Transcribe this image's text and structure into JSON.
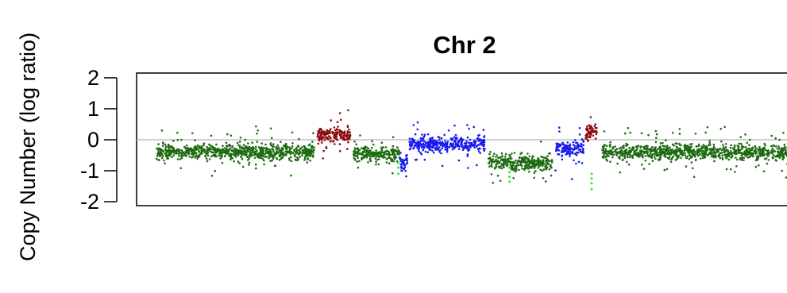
{
  "chart_data": {
    "type": "scatter",
    "title": "Chr 2",
    "ylabel": "Copy Number (log ratio)",
    "xlabel": "",
    "ylim": [
      -2.1,
      2.1
    ],
    "yticks": [
      2,
      1,
      0,
      -1,
      -2
    ],
    "ytick_labels": [
      "2",
      "1",
      "0",
      "-1",
      "-2"
    ],
    "x_axis_shown": false,
    "grid": false,
    "reference_line": 0,
    "colors": {
      "neutral": "#1e6b12",
      "gain": "#8b0a0a",
      "loss": "#1a1aee",
      "outlier": "#33ee33",
      "reference": "#b3b3b3"
    },
    "segments": [
      {
        "x": [
          0.03,
          0.27
        ],
        "mean": -0.4,
        "state": "neutral"
      },
      {
        "x": [
          0.275,
          0.325
        ],
        "mean": 0.15,
        "state": "gain"
      },
      {
        "x": [
          0.33,
          0.4
        ],
        "mean": -0.45,
        "state": "neutral"
      },
      {
        "x": [
          0.4,
          0.412
        ],
        "mean": -0.7,
        "state": "loss"
      },
      {
        "x": [
          0.415,
          0.53
        ],
        "mean": -0.15,
        "state": "loss"
      },
      {
        "x": [
          0.535,
          0.632
        ],
        "mean": -0.75,
        "state": "neutral"
      },
      {
        "x": [
          0.637,
          0.68
        ],
        "mean": -0.3,
        "state": "loss"
      },
      {
        "x": [
          0.683,
          0.7
        ],
        "mean": 0.3,
        "state": "gain"
      },
      {
        "x": [
          0.708,
          0.99
        ],
        "mean": -0.4,
        "state": "neutral"
      }
    ],
    "outlier_columns": [
      {
        "x": 0.398,
        "y": [
          -1.1,
          -0.9,
          -0.75
        ]
      },
      {
        "x": 0.567,
        "y": [
          -1.35,
          -1.2,
          -1.05,
          -0.9
        ]
      },
      {
        "x": 0.692,
        "y": [
          -1.6,
          -1.4,
          -1.25,
          -1.1
        ]
      }
    ]
  }
}
